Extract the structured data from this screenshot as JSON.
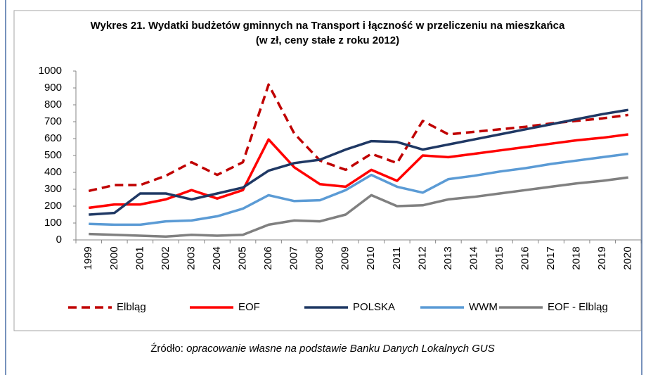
{
  "chart_data": {
    "type": "line",
    "title": "Wykres 21. Wydatki budżetów gminnych na Transport i łączność w przeliczeniu na mieszkańca",
    "subtitle": "(w zł, ceny stałe z roku 2012)",
    "categories": [
      "1999",
      "2000",
      "2001",
      "2002",
      "2003",
      "2004",
      "2005",
      "2006",
      "2007",
      "2008",
      "2009",
      "2010",
      "2011",
      "2012",
      "2013",
      "2014",
      "2015",
      "2016",
      "2017",
      "2018",
      "2019",
      "2020"
    ],
    "series": [
      {
        "name": "Elbląg",
        "color": "#c00000",
        "dashed": true,
        "values": [
          290,
          325,
          325,
          380,
          460,
          385,
          460,
          920,
          630,
          470,
          415,
          510,
          455,
          705,
          625,
          640,
          655,
          670,
          690,
          705,
          720,
          740
        ]
      },
      {
        "name": "EOF",
        "color": "#ff0000",
        "dashed": false,
        "values": [
          190,
          210,
          210,
          240,
          295,
          245,
          295,
          595,
          430,
          330,
          315,
          415,
          350,
          500,
          490,
          510,
          530,
          550,
          570,
          590,
          605,
          625
        ]
      },
      {
        "name": "POLSKA",
        "color": "#1f3864",
        "dashed": false,
        "values": [
          150,
          160,
          275,
          275,
          240,
          275,
          310,
          410,
          455,
          475,
          535,
          585,
          580,
          535,
          565,
          595,
          625,
          655,
          685,
          715,
          745,
          770
        ]
      },
      {
        "name": "WWM",
        "color": "#5b9bd5",
        "dashed": false,
        "values": [
          95,
          90,
          90,
          110,
          115,
          140,
          185,
          265,
          230,
          235,
          295,
          385,
          315,
          280,
          360,
          380,
          405,
          425,
          450,
          470,
          490,
          510
        ]
      },
      {
        "name": "EOF - Elbląg",
        "color": "#808080",
        "dashed": false,
        "values": [
          35,
          30,
          25,
          20,
          30,
          25,
          30,
          90,
          115,
          110,
          150,
          265,
          200,
          205,
          240,
          255,
          275,
          295,
          315,
          335,
          350,
          370
        ]
      }
    ],
    "ylim": [
      0,
      1000
    ],
    "yticks": [
      0,
      100,
      200,
      300,
      400,
      500,
      600,
      700,
      800,
      900,
      1000
    ],
    "grid": false,
    "legend": "bottom",
    "source_label": "Źródło:",
    "source_text": "opracowanie własne na podstawie Banku Danych Lokalnych GUS"
  }
}
